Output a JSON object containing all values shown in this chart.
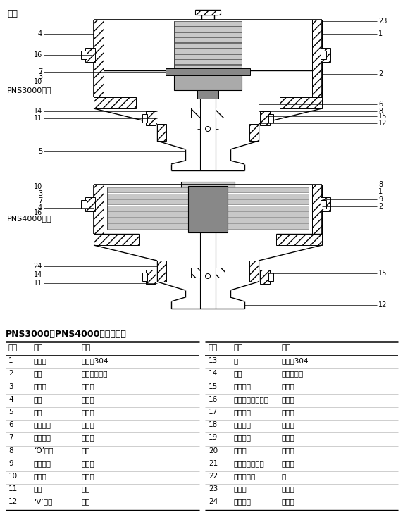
{
  "title": "材料",
  "diagram_title": "PNS3000和PNS4000系列执行器",
  "pns3000_label": "PNS3000系列",
  "pns4000_label": "PNS4000系列",
  "table_headers": [
    "序号",
    "部件",
    "材料"
  ],
  "table_data_left": [
    [
      "1",
      "膜片室",
      "不锈锤304"
    ],
    [
      "2",
      "膜片",
      "增强丁腹橡胶"
    ],
    [
      "3",
      "膜片盘",
      "压制锤"
    ],
    [
      "4",
      "弹簧",
      "弹簧锤"
    ],
    [
      "5",
      "主轴",
      "不锈锤"
    ],
    [
      "6",
      "锁紧螺母",
      "不锈锤"
    ],
    [
      "7",
      "间隔装置",
      "镀锌锤"
    ],
    [
      "8",
      "‘O’型环",
      "橡胶"
    ],
    [
      "9",
      "弹簧导承",
      "镀锌锤"
    ],
    [
      "10",
      "膜片夹",
      "镀锌锤"
    ],
    [
      "11",
      "轴承",
      "青铜"
    ],
    [
      "12",
      "‘V’型环",
      "橡胶"
    ]
  ],
  "table_data_right": [
    [
      "13",
      "軙",
      "不锈锤304"
    ],
    [
      "14",
      "垫片",
      "非石棉纤维"
    ],
    [
      "15",
      "固定螺丝",
      "不锈锤"
    ],
    [
      "16",
      "膜片室螺栓与螺母",
      "不锈锤"
    ],
    [
      "17",
      "上适配器",
      "不锈锤"
    ],
    [
      "18",
      "锁紧螺母",
      "不锈锤"
    ],
    [
      "19",
      "下适配器",
      "不锈锤"
    ],
    [
      "20",
      "连接器",
      "不锈锤"
    ],
    [
      "21",
      "连接螺栓与螺母",
      "不锈锤"
    ],
    [
      "22",
      "行程指示器",
      "铝"
    ],
    [
      "23",
      "排气帽",
      "镀镁铜"
    ],
    [
      "24",
      "间隔装置",
      "镀锌锤"
    ]
  ],
  "bg_color": "#ffffff"
}
